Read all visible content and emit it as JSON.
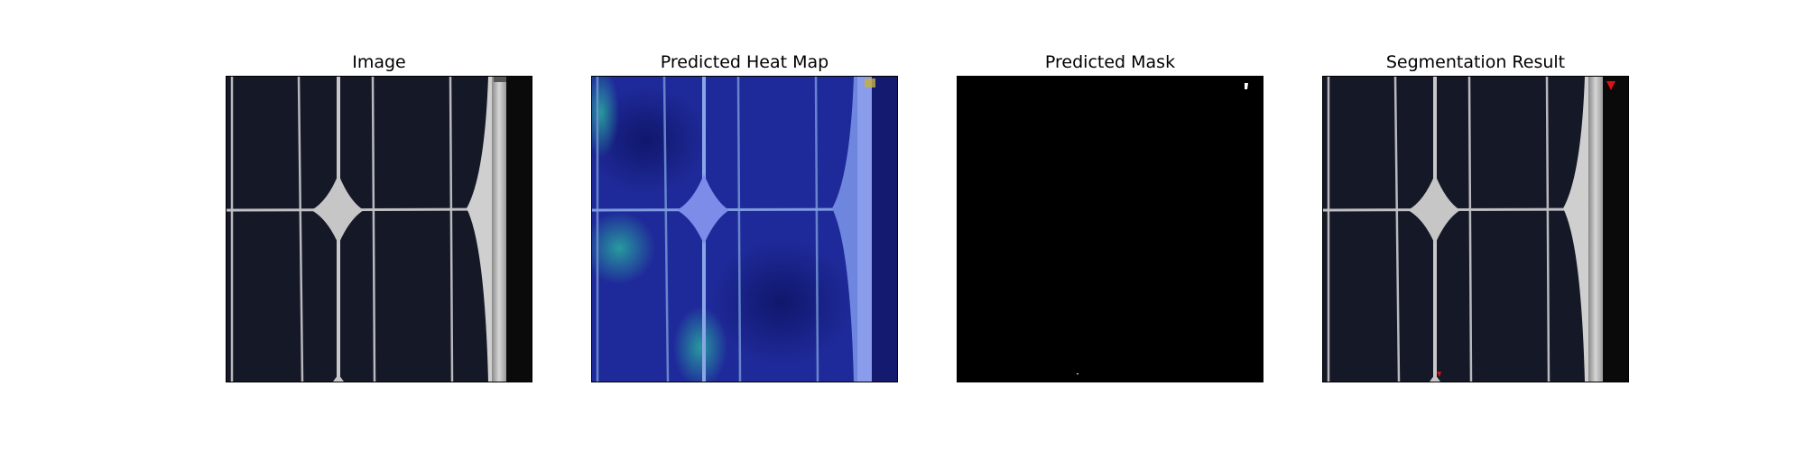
{
  "panels": [
    {
      "title": "Image"
    },
    {
      "title": "Predicted Heat Map"
    },
    {
      "title": "Predicted Mask"
    },
    {
      "title": "Segmentation Result"
    }
  ],
  "colors": {
    "cell_bg": "#151827",
    "grid_line": "#c8c8cc",
    "heatmap_base": "#1a2590",
    "heatmap_hot": "#2bbfa0",
    "mask_bg": "#000000",
    "mask_fg": "#ffffff",
    "defect": "#e01010"
  }
}
